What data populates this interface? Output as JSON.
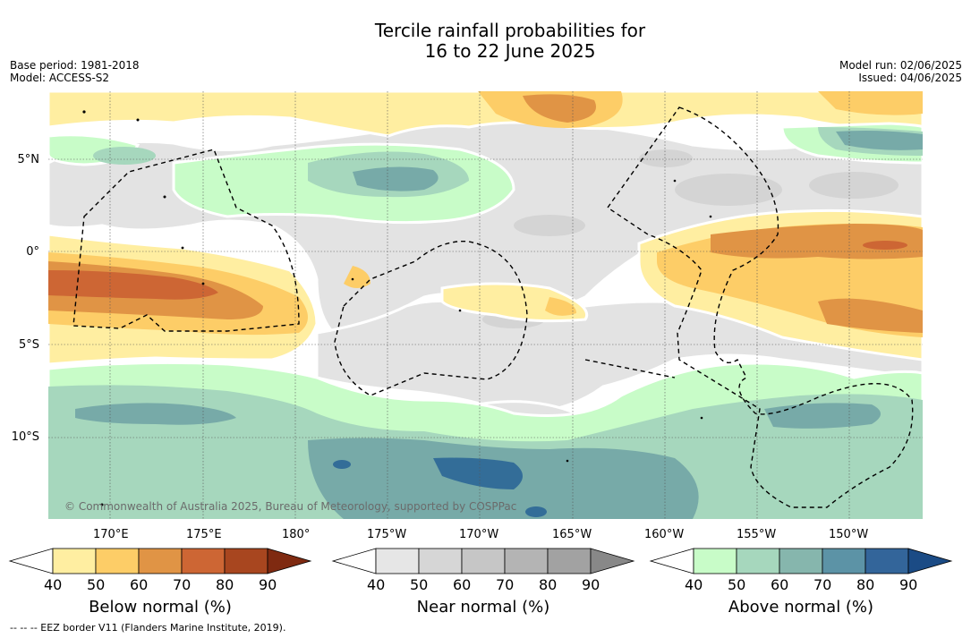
{
  "title_line1": "Tercile rainfall probabilities for",
  "title_line2": "16 to 22 June 2025",
  "base_period": "Base period: 1981-2018",
  "model": "Model: ACCESS-S2",
  "model_run": "Model run: 02/06/2025",
  "issued": "Issued: 04/06/2025",
  "credit": "© Commonwealth of Australia 2025, Bureau of Meteorology, supported by COSPPac",
  "footnote": "--  --  -- EEZ border V11 (Flanders Marine Institute, 2019).",
  "lat_labels": [
    "5°N",
    "0°",
    "5°S",
    "10°S"
  ],
  "lon_labels": [
    "170°E",
    "175°E",
    "180°",
    "175°W",
    "170°W",
    "165°W",
    "160°W",
    "155°W",
    "150°W"
  ],
  "colorbars": [
    {
      "label": "Below normal (%)",
      "ticks": [
        "40",
        "50",
        "60",
        "70",
        "80",
        "90"
      ],
      "colors": [
        "#ffffff",
        "#ffeea1",
        "#fdcd67",
        "#e09445",
        "#cd6634",
        "#a8461f",
        "#7f2a11"
      ]
    },
    {
      "label": "Near normal (%)",
      "ticks": [
        "40",
        "50",
        "60",
        "70",
        "80",
        "90"
      ],
      "colors": [
        "#ffffff",
        "#e6e6e6",
        "#d6d6d6",
        "#c6c6c6",
        "#b4b4b4",
        "#a2a2a2",
        "#888888"
      ]
    },
    {
      "label": "Above normal (%)",
      "ticks": [
        "40",
        "50",
        "60",
        "70",
        "80",
        "90"
      ],
      "colors": [
        "#ffffff",
        "#c8fcc8",
        "#a6d7bd",
        "#86b6ad",
        "#5c93a6",
        "#33659a",
        "#1b4b85"
      ]
    }
  ],
  "colors": {
    "below_50": "#ffeea1",
    "below_60": "#fdcd67",
    "below_70": "#e09445",
    "below_80": "#cd6634",
    "near_50": "#e3e3e3",
    "near_60": "#d4d4d4",
    "above_50": "#c8fcc8",
    "above_60": "#a6d7bd",
    "above_70": "#77aaa8",
    "above_80": "#336d98"
  }
}
